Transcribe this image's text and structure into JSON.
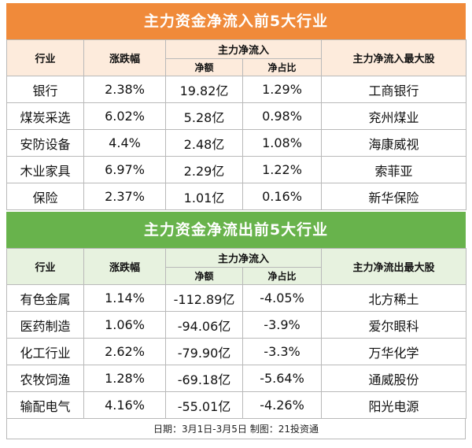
{
  "inflow": {
    "title": "主力资金净流入前5大行业",
    "headers": {
      "industry": "行业",
      "change": "涨跌幅",
      "group": "主力净流入",
      "net": "净额",
      "ratio": "净占比",
      "top_stock": "主力净流入最大股"
    },
    "rows": [
      {
        "industry": "银行",
        "change": "2.38%",
        "net": "19.82亿",
        "ratio": "1.29%",
        "stock": "工商银行"
      },
      {
        "industry": "煤炭采选",
        "change": "6.02%",
        "net": "5.28亿",
        "ratio": "0.98%",
        "stock": "兖州煤业"
      },
      {
        "industry": "安防设备",
        "change": "4.4%",
        "net": "2.48亿",
        "ratio": "1.08%",
        "stock": "海康威视"
      },
      {
        "industry": "木业家具",
        "change": "6.97%",
        "net": "2.29亿",
        "ratio": "1.22%",
        "stock": "索菲亚"
      },
      {
        "industry": "保险",
        "change": "2.37%",
        "net": "1.01亿",
        "ratio": "0.16%",
        "stock": "新华保险"
      }
    ]
  },
  "outflow": {
    "title": "主力资金净流出前5大行业",
    "headers": {
      "industry": "行业",
      "change": "涨跌幅",
      "group": "主力净流入",
      "net": "净额",
      "ratio": "净占比",
      "top_stock": "主力净流出最大股"
    },
    "rows": [
      {
        "industry": "有色金属",
        "change": "1.14%",
        "net": "-112.89亿",
        "ratio": "-4.05%",
        "stock": "北方稀土"
      },
      {
        "industry": "医药制造",
        "change": "1.06%",
        "net": "-94.06亿",
        "ratio": "-3.9%",
        "stock": "爱尔眼科"
      },
      {
        "industry": "化工行业",
        "change": "2.62%",
        "net": "-79.90亿",
        "ratio": "-3.3%",
        "stock": "万华化学"
      },
      {
        "industry": "农牧饲渔",
        "change": "1.28%",
        "net": "-69.18亿",
        "ratio": "-5.64%",
        "stock": "通威股份"
      },
      {
        "industry": "输配电气",
        "change": "4.16%",
        "net": "-55.01亿",
        "ratio": "-4.26%",
        "stock": "阳光电源"
      }
    ]
  },
  "footer": "日期：3月1日-3月5日 制图：21投资通",
  "colors": {
    "inflow_title_bg": "#f08a3a",
    "inflow_header_bg": "#fdebdc",
    "outflow_title_bg": "#68b34c",
    "outflow_header_bg": "#e7f2df"
  }
}
